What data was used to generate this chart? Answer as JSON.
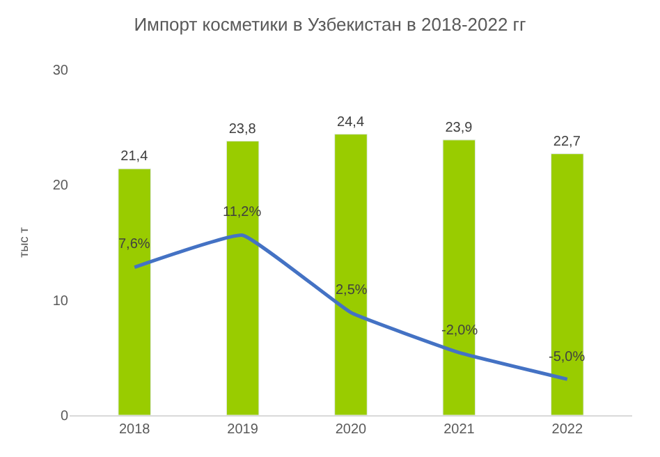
{
  "chart_data": {
    "type": "bar",
    "title": "Импорт косметики в Узбекистан в 2018-2022 гг",
    "ylabel": "тыс т",
    "categories": [
      "2018",
      "2019",
      "2020",
      "2021",
      "2022"
    ],
    "series": [
      {
        "color": "#99cc00",
        "values": [
          21.4,
          23.8,
          24.4,
          23.9,
          22.7
        ],
        "value_labels": [
          "21,4",
          "23,8",
          "24,4",
          "23,9",
          "22,7"
        ]
      },
      {
        "type": "line",
        "axis": "y2",
        "color": "#4472c4",
        "values": [
          7.6,
          11.2,
          2.5,
          -2.0,
          -5.0
        ],
        "value_labels": [
          "7,6%",
          "11,2%",
          "2,5%",
          "-2,0%",
          "-5,0%"
        ]
      }
    ],
    "ylim": [
      0,
      30
    ],
    "yticks": [
      0,
      10,
      20,
      30
    ],
    "legend": false,
    "marker": "none",
    "line_style": "solid"
  }
}
